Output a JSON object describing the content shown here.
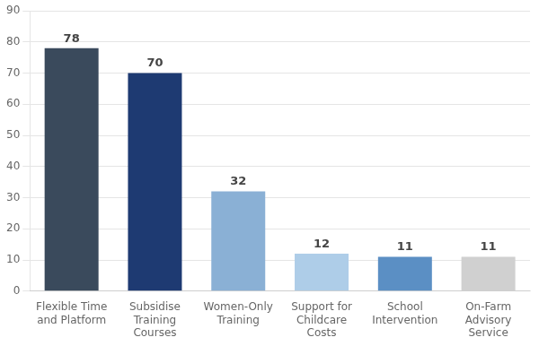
{
  "chart_data": {
    "type": "bar",
    "categories": [
      "Flexible Time\nand Platform",
      "Subsidise\nTraining\nCourses",
      "Women-Only\nTraining",
      "Support for\nChildcare\nCosts",
      "School\nIntervention",
      "On-Farm\nAdvisory\nService"
    ],
    "values": [
      78,
      70,
      32,
      12,
      11,
      11
    ],
    "colors": [
      "#3a4a5c",
      "#1e3a72",
      "#8ab0d5",
      "#aecde8",
      "#5b8fc4",
      "#d0d0d0"
    ],
    "ylim": [
      0,
      90
    ],
    "yticks": [
      0,
      10,
      20,
      30,
      40,
      50,
      60,
      70,
      80,
      90
    ],
    "grid": true,
    "data_labels": true
  }
}
